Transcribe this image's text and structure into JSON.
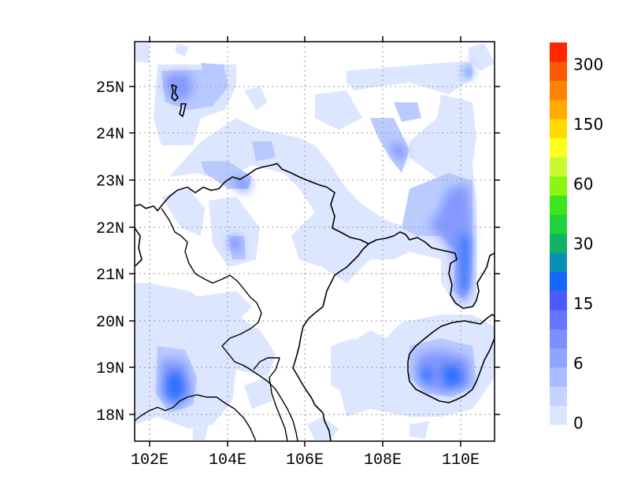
{
  "map": {
    "lon_labels": [
      "102E",
      "104E",
      "106E",
      "108E",
      "110E"
    ],
    "lat_labels": [
      "18N",
      "19N",
      "20N",
      "21N",
      "22N",
      "23N",
      "24N",
      "25N"
    ],
    "lon_range": [
      101.7,
      110.8
    ],
    "lat_range": [
      17.4,
      25.9
    ],
    "gridlines": true
  },
  "colorbar": {
    "labels": [
      "0",
      "6",
      "15",
      "30",
      "60",
      "150",
      "300"
    ],
    "colors": [
      "#dde6ff",
      "#c5d3ff",
      "#a9bcff",
      "#8ea6ff",
      "#7b90ff",
      "#6675ff",
      "#4a5cff",
      "#1466ff",
      "#0a8fb4",
      "#10b464",
      "#1ed23c",
      "#3ce61e",
      "#8cf514",
      "#c8fa32",
      "#ffff1e",
      "#ffdc00",
      "#ffaa00",
      "#ff8200",
      "#ff5a00",
      "#ff2800"
    ]
  },
  "icons": {
    "coastline": "coastline-icon",
    "border": "country-border-icon"
  }
}
